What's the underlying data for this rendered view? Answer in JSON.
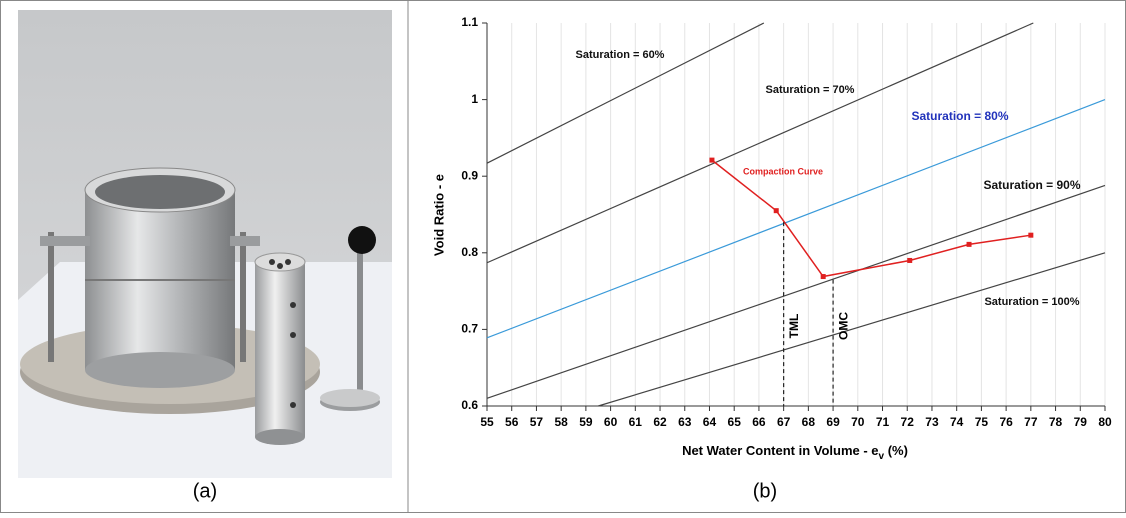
{
  "captions": {
    "left": "(a)",
    "right": "(b)"
  },
  "chart_data": {
    "type": "line",
    "xlabel": {
      "main": "Net Water Content in Volume - e",
      "sub": "v",
      "tail": " (%)"
    },
    "ylabel": "Void Ratio - e",
    "xlim": [
      55,
      80
    ],
    "xticks": [
      55,
      56,
      57,
      58,
      59,
      60,
      61,
      62,
      63,
      64,
      65,
      66,
      67,
      68,
      69,
      70,
      71,
      72,
      73,
      74,
      75,
      76,
      77,
      78,
      79,
      80
    ],
    "ylim": [
      0.6,
      1.1
    ],
    "yticks": [
      0.6,
      0.7,
      0.8,
      0.9,
      1,
      1.1
    ],
    "grid": true,
    "series": [
      {
        "name": "Saturation = 60%",
        "color": "#444444",
        "label_color": "#111111",
        "x": [
          55,
          66.2
        ],
        "values": [
          0.917,
          1.1
        ]
      },
      {
        "name": "Saturation = 70%",
        "color": "#444444",
        "label_color": "#111111",
        "x": [
          55,
          77.1
        ],
        "values": [
          0.787,
          1.1
        ]
      },
      {
        "name": "Saturation = 80%",
        "color": "#3a9ad9",
        "label_color": "#2233bb",
        "x": [
          55,
          80
        ],
        "values": [
          0.689,
          1.0
        ]
      },
      {
        "name": "Saturation = 90%",
        "color": "#444444",
        "label_color": "#111111",
        "x": [
          55,
          80
        ],
        "values": [
          0.61,
          0.888
        ]
      },
      {
        "name": "Saturation = 100%",
        "color": "#444444",
        "label_color": "#111111",
        "x": [
          59.5,
          80
        ],
        "values": [
          0.6,
          0.8
        ]
      },
      {
        "name": "Compaction Curve",
        "color": "#e02020",
        "label_color": "#e02020",
        "x": [
          64.1,
          66.7,
          68.6,
          72.1,
          74.5,
          77.0
        ],
        "values": [
          0.921,
          0.855,
          0.769,
          0.79,
          0.811,
          0.823
        ]
      }
    ],
    "markers": [
      {
        "label": "TML",
        "x": 67,
        "y": 0.84
      },
      {
        "label": "OMC",
        "x": 69,
        "y": 0.765
      }
    ]
  }
}
